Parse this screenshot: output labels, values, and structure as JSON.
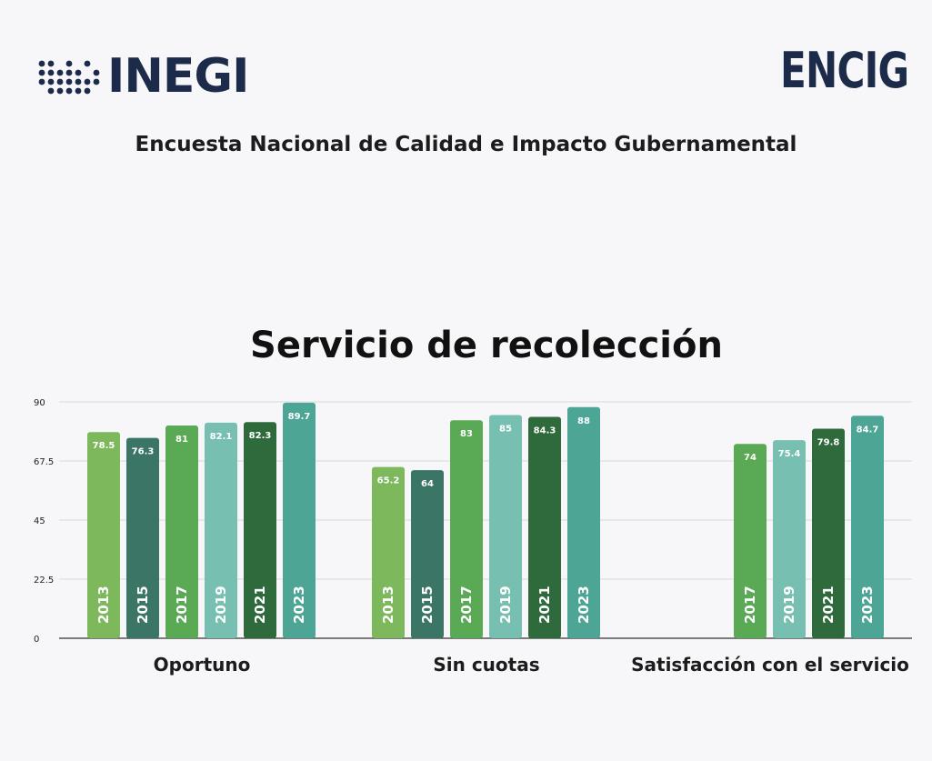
{
  "header": {
    "logo_left": "INEGI",
    "logo_right": "ENCIG",
    "subtitle": "Encuesta Nacional de Calidad e Impacto Gubernamental"
  },
  "colors": {
    "navy": "#1d2b4a",
    "2013": "#7db85c",
    "2015": "#3a7565",
    "2017": "#5aa955",
    "2019": "#77bfb0",
    "2021": "#2f6a3c",
    "2023": "#4da596"
  },
  "chart_data": {
    "type": "bar",
    "title": "Servicio de recolección",
    "ylim": [
      0,
      90
    ],
    "yticks": [
      "0",
      "22.5",
      "45",
      "67.5",
      "90"
    ],
    "grid": true,
    "groups": [
      {
        "label": "Oportuno",
        "bars": [
          {
            "year": "2013",
            "value": 78.5
          },
          {
            "year": "2015",
            "value": 76.3
          },
          {
            "year": "2017",
            "value": 81
          },
          {
            "year": "2019",
            "value": 82.1
          },
          {
            "year": "2021",
            "value": 82.3
          },
          {
            "year": "2023",
            "value": 89.7
          }
        ]
      },
      {
        "label": "Sin cuotas",
        "bars": [
          {
            "year": "2013",
            "value": 65.2
          },
          {
            "year": "2015",
            "value": 64
          },
          {
            "year": "2017",
            "value": 83
          },
          {
            "year": "2019",
            "value": 85
          },
          {
            "year": "2021",
            "value": 84.3
          },
          {
            "year": "2023",
            "value": 88
          }
        ]
      },
      {
        "label": "Satisfacción con el servicio",
        "bars": [
          {
            "year": "2017",
            "value": 74
          },
          {
            "year": "2019",
            "value": 75.4
          },
          {
            "year": "2021",
            "value": 79.8
          },
          {
            "year": "2023",
            "value": 84.7
          }
        ]
      }
    ]
  }
}
